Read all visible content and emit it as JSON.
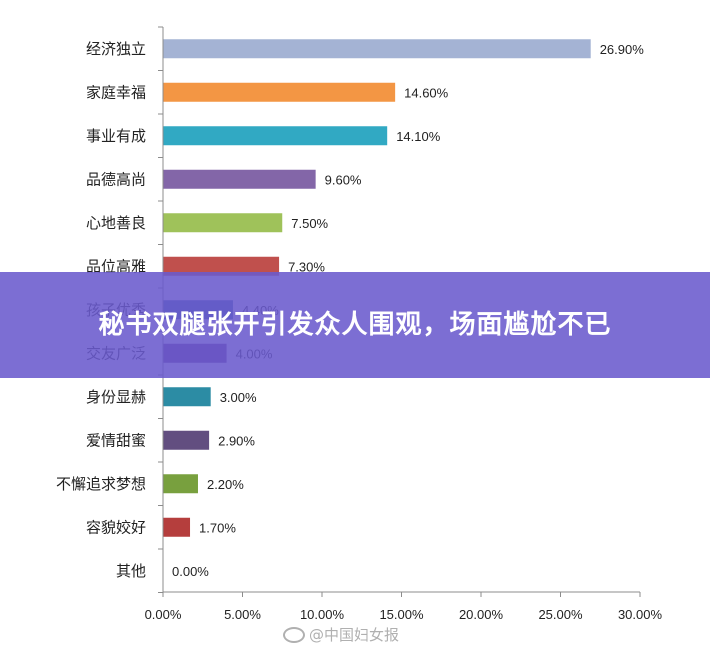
{
  "chart_data": {
    "type": "bar",
    "orientation": "horizontal",
    "categories": [
      "经济独立",
      "家庭幸福",
      "事业有成",
      "品德高尚",
      "心地善良",
      "品位高雅",
      "孩子优秀",
      "交友广泛",
      "身份显赫",
      "爱情甜蜜",
      "不懈追求梦想",
      "容貌姣好",
      "其他"
    ],
    "values": [
      26.9,
      14.6,
      14.1,
      9.6,
      7.5,
      7.3,
      4.4,
      4.0,
      3.0,
      2.9,
      2.2,
      1.7,
      0.0
    ],
    "value_labels": [
      "26.90%",
      "14.60%",
      "14.10%",
      "9.60%",
      "7.50%",
      "7.30%",
      "4.40%",
      "4.00%",
      "3.00%",
      "2.90%",
      "2.20%",
      "1.70%",
      "0.00%"
    ],
    "colors": [
      "#a4b3d4",
      "#f39644",
      "#31a9c3",
      "#8366a8",
      "#9fc25a",
      "#c0504d",
      "#3e6fa6",
      "#6b3d8c",
      "#2c8ca4",
      "#624e80",
      "#78a03e",
      "#b53e3d",
      "#ffffff"
    ],
    "xlim": [
      0,
      30
    ],
    "x_ticks": [
      "0.00%",
      "5.00%",
      "10.00%",
      "15.00%",
      "20.00%",
      "25.00%",
      "30.00%"
    ],
    "grid": false,
    "legend": "none"
  },
  "banner": {
    "title": "秘书双腿张开引发众人围观，场面尴尬不已"
  },
  "watermark": {
    "text": "@中国妇女报"
  }
}
